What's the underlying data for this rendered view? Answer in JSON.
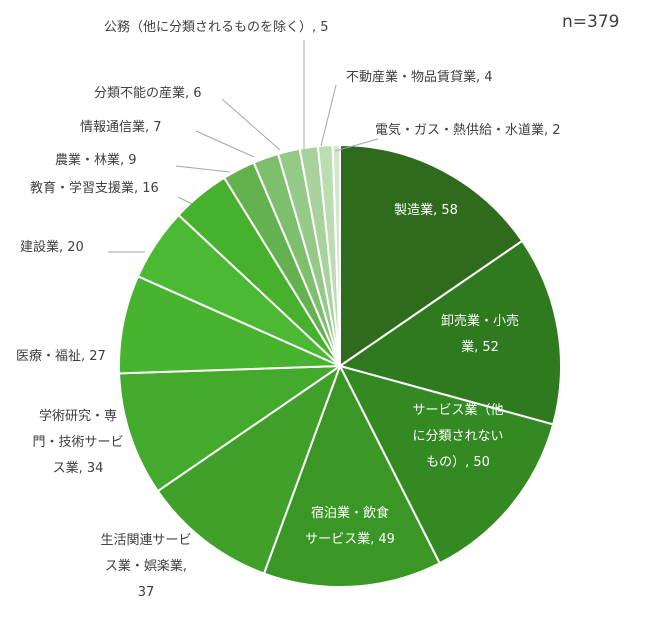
{
  "n_label": "n=379",
  "chart_data": {
    "type": "pie",
    "categories": [
      "製造業",
      "卸売業・小売業",
      "サービス業（他に分類されないもの）",
      "宿泊業・飲食サービス業",
      "生活関連サービス業・娯楽業",
      "学術研究・専門・技術サービス業",
      "医療・福祉",
      "建設業",
      "教育・学習支援業",
      "農業・林業",
      "情報通信業",
      "分類不能の産業",
      "公務（他に分類されるものを除く）",
      "不動産業・物品賃貸業",
      "電気・ガス・熱供給・水道業"
    ],
    "values": [
      58,
      52,
      50,
      49,
      37,
      34,
      27,
      20,
      16,
      9,
      7,
      6,
      5,
      4,
      2
    ],
    "labels": [
      [
        "製造業, 58"
      ],
      [
        "卸売業・小売",
        "業, 52"
      ],
      [
        "サービス業（他",
        "に分類されない",
        "もの）, 50"
      ],
      [
        "宿泊業・飲食",
        "サービス業, 49"
      ],
      [
        "生活関連サービ",
        "ス業・娯楽業,",
        "37"
      ],
      [
        "学術研究・専",
        "門・技術サービ",
        "ス業, 34"
      ],
      [
        "医療・福祉, 27"
      ],
      [
        "建設業, 20"
      ],
      [
        "教育・学習支援業, 16"
      ],
      [
        "農業・林業, 9"
      ],
      [
        "情報通信業, 7"
      ],
      [
        "分類不能の産業, 6"
      ],
      [
        "公務（他に分類されるものを除く）, 5"
      ],
      [
        "不動産業・物品賃貸業, 4"
      ],
      [
        "電気・ガス・熱供給・水道業, 2"
      ]
    ],
    "colors": [
      "#2e6b1c",
      "#2f7a1e",
      "#348a22",
      "#3a9726",
      "#40a02a",
      "#43aa2c",
      "#47b32f",
      "#4cb934",
      "#47b02c",
      "#63b24f",
      "#7dbf6c",
      "#94c987",
      "#a8d29c",
      "#bcdcb2",
      "#d2e8cb"
    ]
  }
}
